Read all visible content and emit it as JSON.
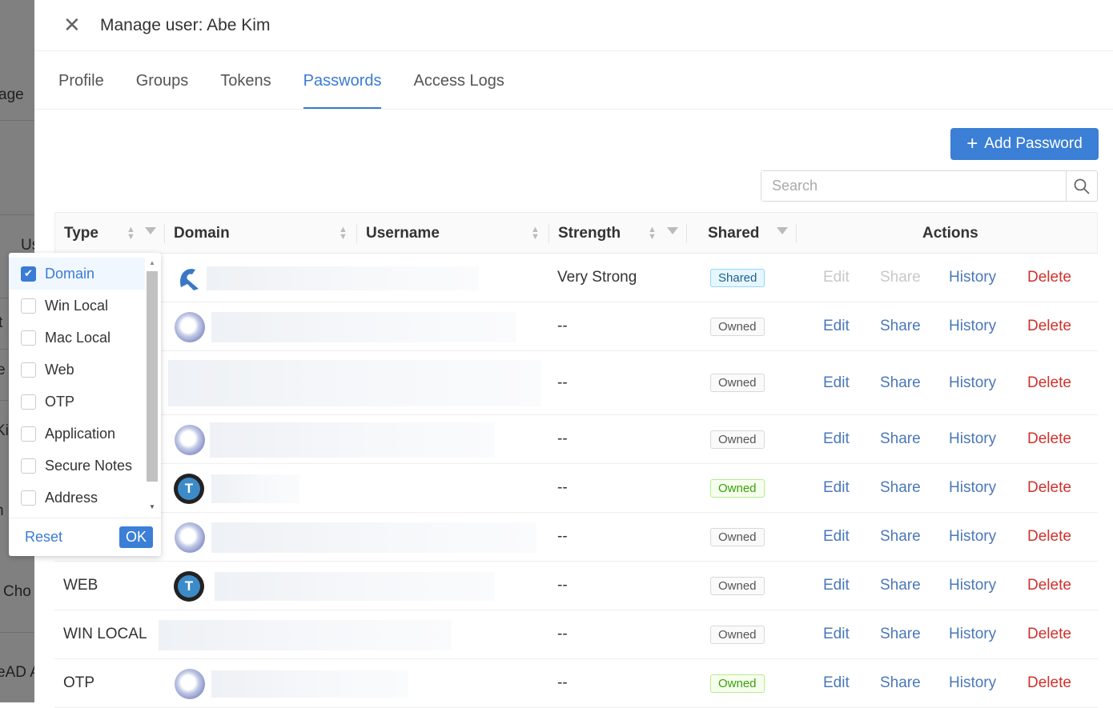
{
  "background_fragments": [
    "age",
    "Us",
    "t",
    "e",
    "Ki",
    "n",
    "Cho",
    "eAD A"
  ],
  "header": {
    "title": "Manage user: Abe Kim"
  },
  "tabs": [
    {
      "label": "Profile"
    },
    {
      "label": "Groups"
    },
    {
      "label": "Tokens"
    },
    {
      "label": "Passwords",
      "active": true
    },
    {
      "label": "Access Logs"
    }
  ],
  "toolbar": {
    "add_label": "Add Password",
    "search_placeholder": "Search",
    "search_value": ""
  },
  "columns": [
    "Type",
    "Domain",
    "Username",
    "Strength",
    "Shared",
    "Actions"
  ],
  "rows": [
    {
      "type": "",
      "icon": "helmet",
      "strength": "Very Strong",
      "shared": "Shared",
      "badge": "shared",
      "actions_enabled": false
    },
    {
      "type": "",
      "icon": "globe",
      "strength": "--",
      "shared": "Owned",
      "badge": "default",
      "actions_enabled": true
    },
    {
      "type": "",
      "icon": "none",
      "strength": "--",
      "shared": "Owned",
      "badge": "default",
      "actions_enabled": true
    },
    {
      "type": "",
      "icon": "globe",
      "strength": "--",
      "shared": "Owned",
      "badge": "default",
      "actions_enabled": true
    },
    {
      "type": "",
      "icon": "t",
      "strength": "--",
      "shared": "Owned",
      "badge": "green",
      "actions_enabled": true
    },
    {
      "type": "",
      "icon": "globe",
      "strength": "--",
      "shared": "Owned",
      "badge": "default",
      "actions_enabled": true
    },
    {
      "type": "WEB",
      "icon": "t",
      "strength": "--",
      "shared": "Owned",
      "badge": "default",
      "actions_enabled": true
    },
    {
      "type": "WIN LOCAL",
      "icon": "none",
      "strength": "--",
      "shared": "Owned",
      "badge": "default",
      "actions_enabled": true
    },
    {
      "type": "OTP",
      "icon": "globe",
      "strength": "--",
      "shared": "Owned",
      "badge": "green",
      "actions_enabled": true
    }
  ],
  "actions": {
    "edit": "Edit",
    "share": "Share",
    "history": "History",
    "delete": "Delete"
  },
  "filter_dropdown": {
    "options": [
      {
        "label": "Domain",
        "checked": true
      },
      {
        "label": "Win Local",
        "checked": false
      },
      {
        "label": "Mac Local",
        "checked": false
      },
      {
        "label": "Web",
        "checked": false
      },
      {
        "label": "OTP",
        "checked": false
      },
      {
        "label": "Application",
        "checked": false
      },
      {
        "label": "Secure Notes",
        "checked": false
      },
      {
        "label": "Address",
        "checked": false
      }
    ],
    "reset_label": "Reset",
    "ok_label": "OK"
  },
  "colors": {
    "accent": "#3b7fd6",
    "delete": "#d0312d",
    "shared_badge": "#e6f7ff",
    "green_badge": "#f6ffed"
  },
  "close_glyph": "✕"
}
